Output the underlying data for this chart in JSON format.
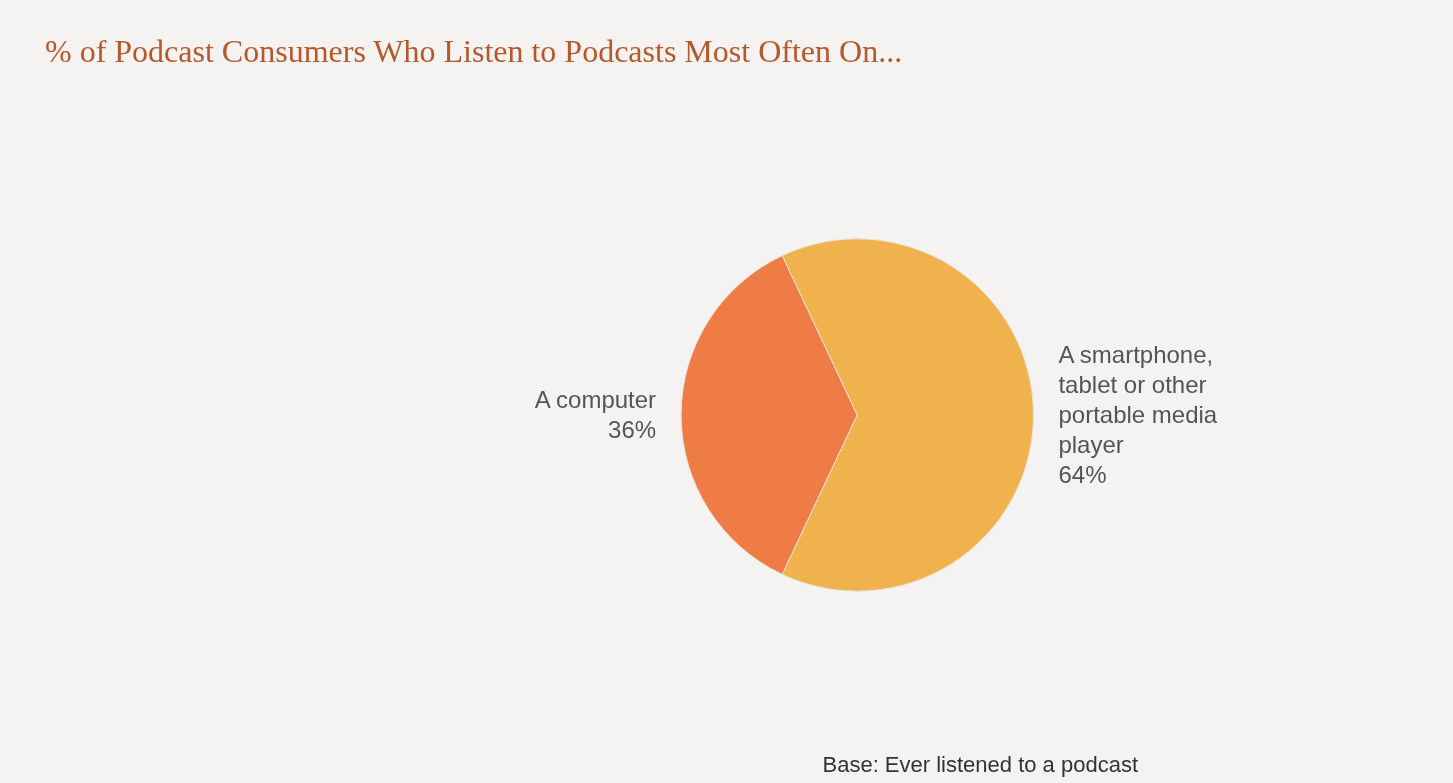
{
  "chart_data": {
    "type": "pie",
    "title": "% of Podcast Consumers Who Listen to Podcasts Most Often On...",
    "categories": [
      "A computer",
      "A smartphone, tablet or other portable media player"
    ],
    "values": [
      36,
      64
    ],
    "value_labels": [
      "36%",
      "64%"
    ],
    "colors": [
      "#f07c45",
      "#f0b24c"
    ],
    "legend": false,
    "annotations": [
      "Base: Ever listened to a podcast"
    ]
  }
}
